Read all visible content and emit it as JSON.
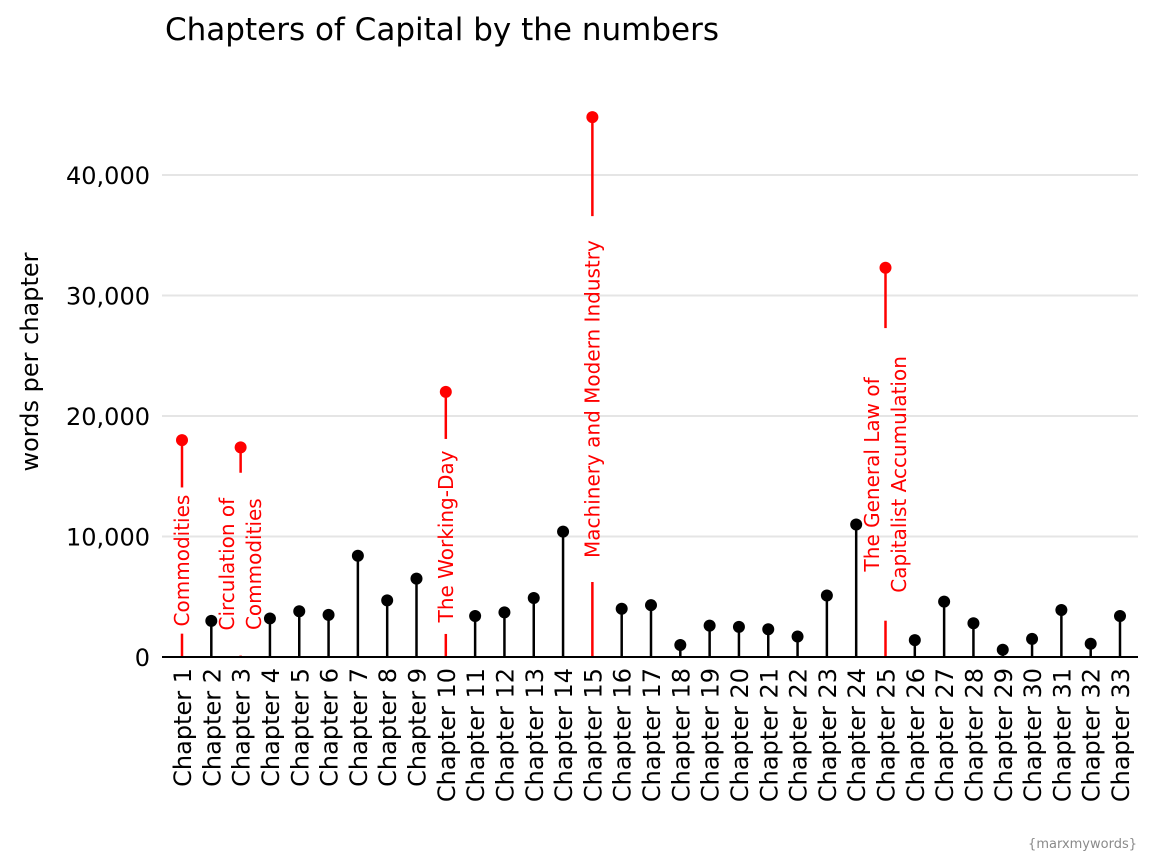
{
  "chart_data": {
    "type": "lollipop",
    "title": "Chapters of Capital by the numbers",
    "ylabel": "words per chapter",
    "xlabel": "",
    "caption": "{marxmywords}",
    "ylim": [
      0,
      45000
    ],
    "yticks": [
      0,
      10000,
      20000,
      30000,
      40000
    ],
    "ytick_labels": [
      "0",
      "10,000",
      "20,000",
      "30,000",
      "40,000"
    ],
    "grid": "horizontal",
    "colors": {
      "default": "#000000",
      "highlight": "#ff0000",
      "grid": "#e5e5e5"
    },
    "categories": [
      "Chapter 1",
      "Chapter 2",
      "Chapter 3",
      "Chapter 4",
      "Chapter 5",
      "Chapter 6",
      "Chapter 7",
      "Chapter 8",
      "Chapter 9",
      "Chapter 10",
      "Chapter 11",
      "Chapter 12",
      "Chapter 13",
      "Chapter 14",
      "Chapter 15",
      "Chapter 16",
      "Chapter 17",
      "Chapter 18",
      "Chapter 19",
      "Chapter 20",
      "Chapter 21",
      "Chapter 22",
      "Chapter 23",
      "Chapter 24",
      "Chapter 25",
      "Chapter 26",
      "Chapter 27",
      "Chapter 28",
      "Chapter 29",
      "Chapter 30",
      "Chapter 31",
      "Chapter 32",
      "Chapter 33"
    ],
    "values": [
      18000,
      3000,
      17400,
      3200,
      3800,
      3500,
      8400,
      4700,
      6500,
      22000,
      3400,
      3700,
      4900,
      10400,
      44800,
      4000,
      4300,
      1000,
      2600,
      2500,
      2300,
      1700,
      5100,
      11000,
      32300,
      1400,
      4600,
      2800,
      600,
      1500,
      3900,
      1100,
      3400
    ],
    "annotations": [
      {
        "index": 0,
        "lines": [
          "Commodities"
        ]
      },
      {
        "index": 2,
        "lines": [
          "Circulation of",
          "Commodities"
        ]
      },
      {
        "index": 9,
        "lines": [
          "The Working-Day"
        ]
      },
      {
        "index": 14,
        "lines": [
          "Machinery and Modern Industry"
        ]
      },
      {
        "index": 24,
        "lines": [
          "The General Law of",
          "Capitalist Accumulation"
        ]
      }
    ]
  }
}
